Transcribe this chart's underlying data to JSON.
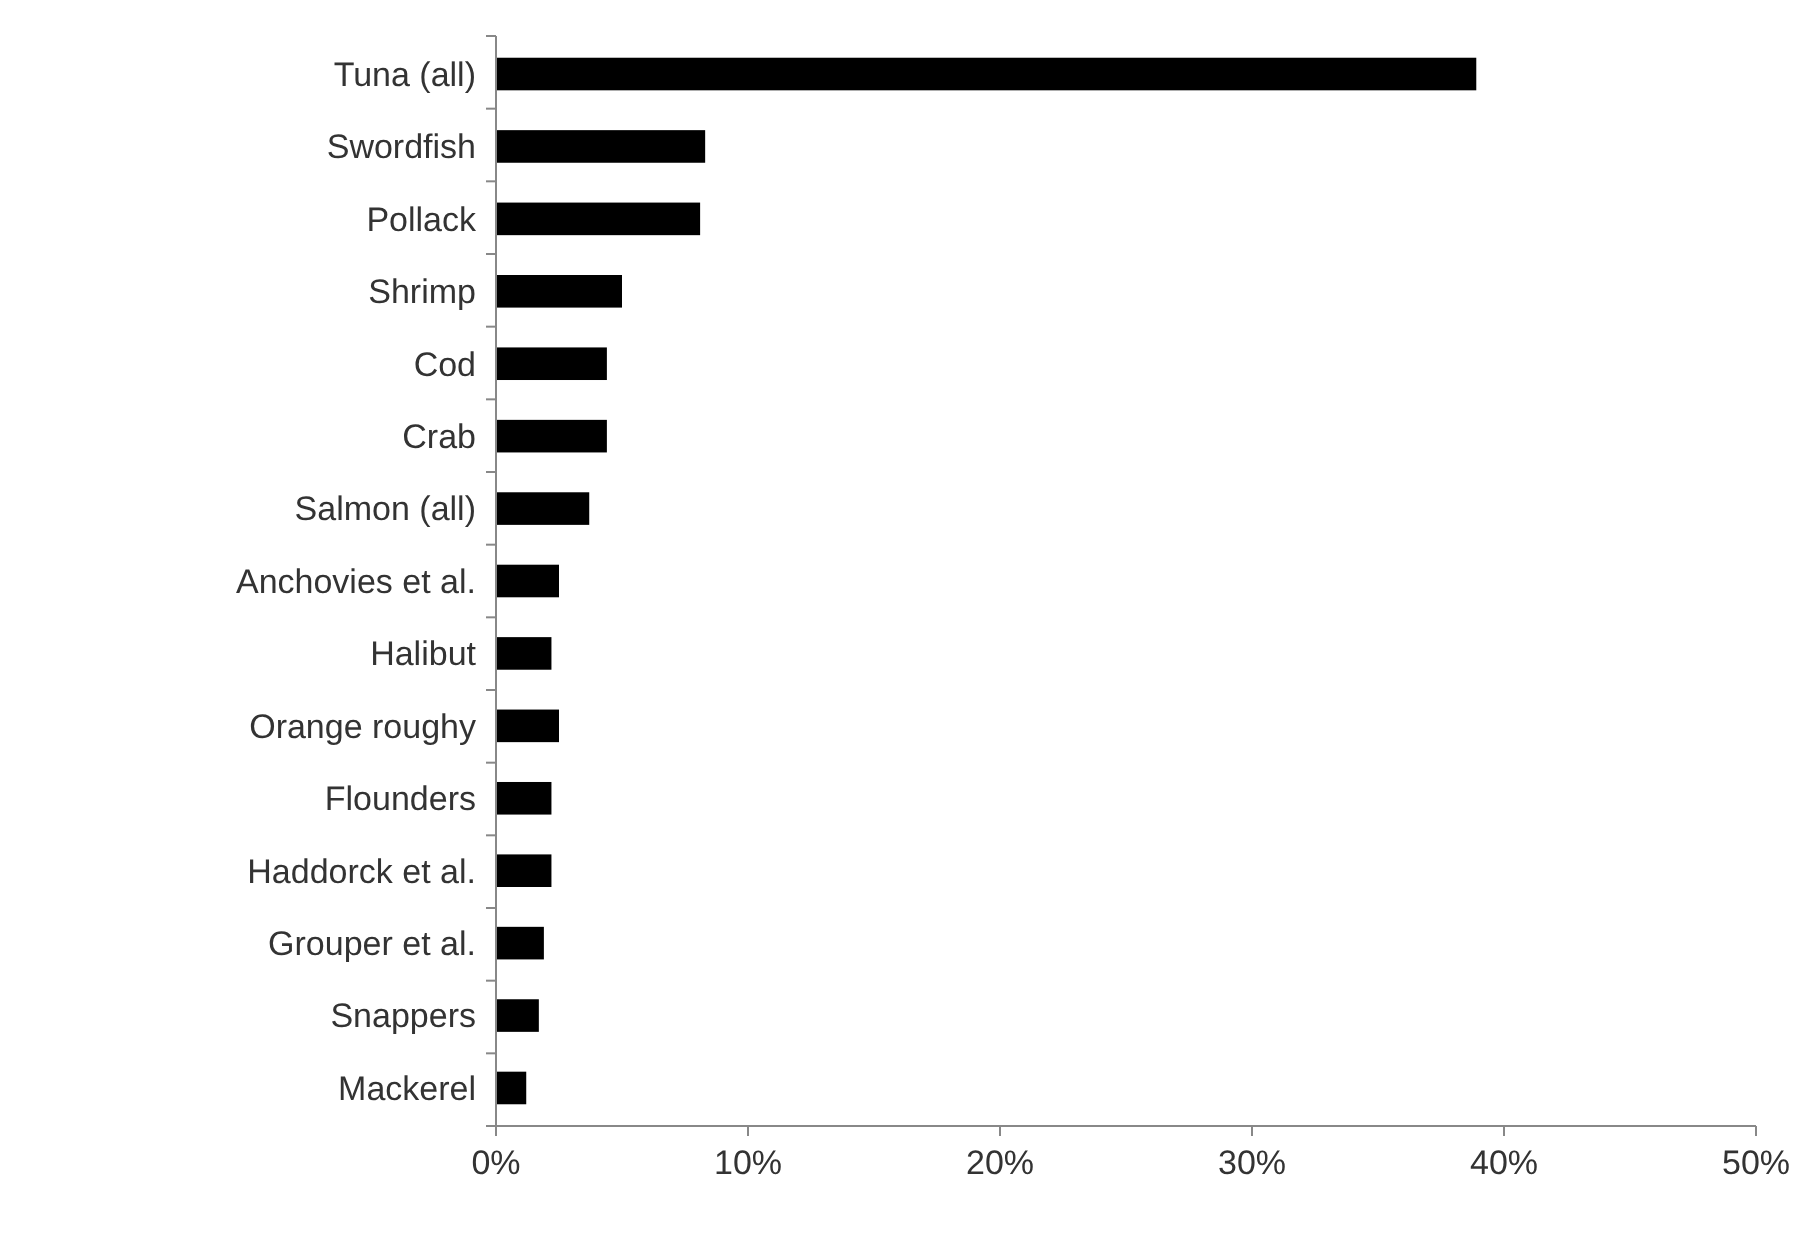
{
  "chart_data": {
    "type": "bar",
    "orientation": "horizontal",
    "categories": [
      "Tuna (all)",
      "Swordfish",
      "Pollack",
      "Shrimp",
      "Cod",
      "Crab",
      "Salmon (all)",
      "Anchovies et al.",
      "Halibut",
      "Orange roughy",
      "Flounders",
      "Haddorck et al.",
      "Grouper et al.",
      "Snappers",
      "Mackerel"
    ],
    "values": [
      38.9,
      8.3,
      8.1,
      5.0,
      4.4,
      4.4,
      3.7,
      2.5,
      2.2,
      2.5,
      2.2,
      2.2,
      1.9,
      1.7,
      1.2
    ],
    "color": "#000000",
    "xlim": [
      0,
      50
    ],
    "xticks": [
      {
        "value": 0,
        "label": "0%"
      },
      {
        "value": 10,
        "label": "10%"
      },
      {
        "value": 20,
        "label": "20%"
      },
      {
        "value": 30,
        "label": "30%"
      },
      {
        "value": 40,
        "label": "40%"
      },
      {
        "value": 50,
        "label": "50%"
      }
    ],
    "grid": false
  }
}
